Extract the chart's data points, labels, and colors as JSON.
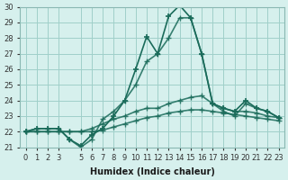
{
  "xlabel": "Humidex (Indice chaleur)",
  "ylabel": "",
  "background_color": "#d6f0ed",
  "grid_color": "#a0cfc9",
  "line_color": "#1a6b5a",
  "x_values": [
    0,
    1,
    2,
    3,
    4,
    5,
    6,
    7,
    8,
    9,
    10,
    11,
    12,
    13,
    14,
    15,
    16,
    17,
    18,
    19,
    20,
    21,
    22,
    23
  ],
  "series": [
    [
      22.0,
      22.2,
      22.2,
      22.2,
      21.5,
      21.1,
      21.8,
      22.2,
      23.0,
      24.0,
      26.0,
      28.1,
      27.0,
      29.4,
      30.1,
      29.3,
      27.0,
      23.8,
      23.5,
      23.3,
      24.0,
      23.5,
      23.3,
      22.9
    ],
    [
      22.0,
      22.2,
      22.2,
      22.2,
      21.5,
      21.0,
      21.5,
      22.8,
      23.3,
      24.0,
      25.0,
      26.5,
      27.0,
      28.0,
      29.3,
      29.3,
      27.0,
      23.8,
      23.3,
      23.0,
      23.8,
      23.5,
      23.3,
      22.9
    ],
    [
      22.0,
      22.0,
      22.0,
      22.0,
      22.0,
      22.0,
      22.2,
      22.5,
      22.8,
      23.0,
      23.3,
      23.5,
      23.5,
      23.8,
      24.0,
      24.2,
      24.3,
      23.8,
      23.5,
      23.3,
      23.3,
      23.2,
      23.0,
      22.9
    ],
    [
      22.0,
      22.0,
      22.0,
      22.0,
      22.0,
      22.0,
      22.0,
      22.1,
      22.3,
      22.5,
      22.7,
      22.9,
      23.0,
      23.2,
      23.3,
      23.4,
      23.4,
      23.3,
      23.2,
      23.1,
      23.0,
      22.9,
      22.8,
      22.7
    ]
  ],
  "ylim": [
    21,
    30
  ],
  "yticks": [
    21,
    22,
    23,
    24,
    25,
    26,
    27,
    28,
    29,
    30
  ],
  "xlim": [
    -0.5,
    23.5
  ],
  "xticks": [
    0,
    1,
    2,
    3,
    5,
    6,
    7,
    8,
    9,
    10,
    11,
    12,
    13,
    14,
    15,
    16,
    17,
    18,
    19,
    20,
    21,
    22,
    23
  ],
  "marker": "+",
  "markersize": 5,
  "linewidth": 1.2
}
